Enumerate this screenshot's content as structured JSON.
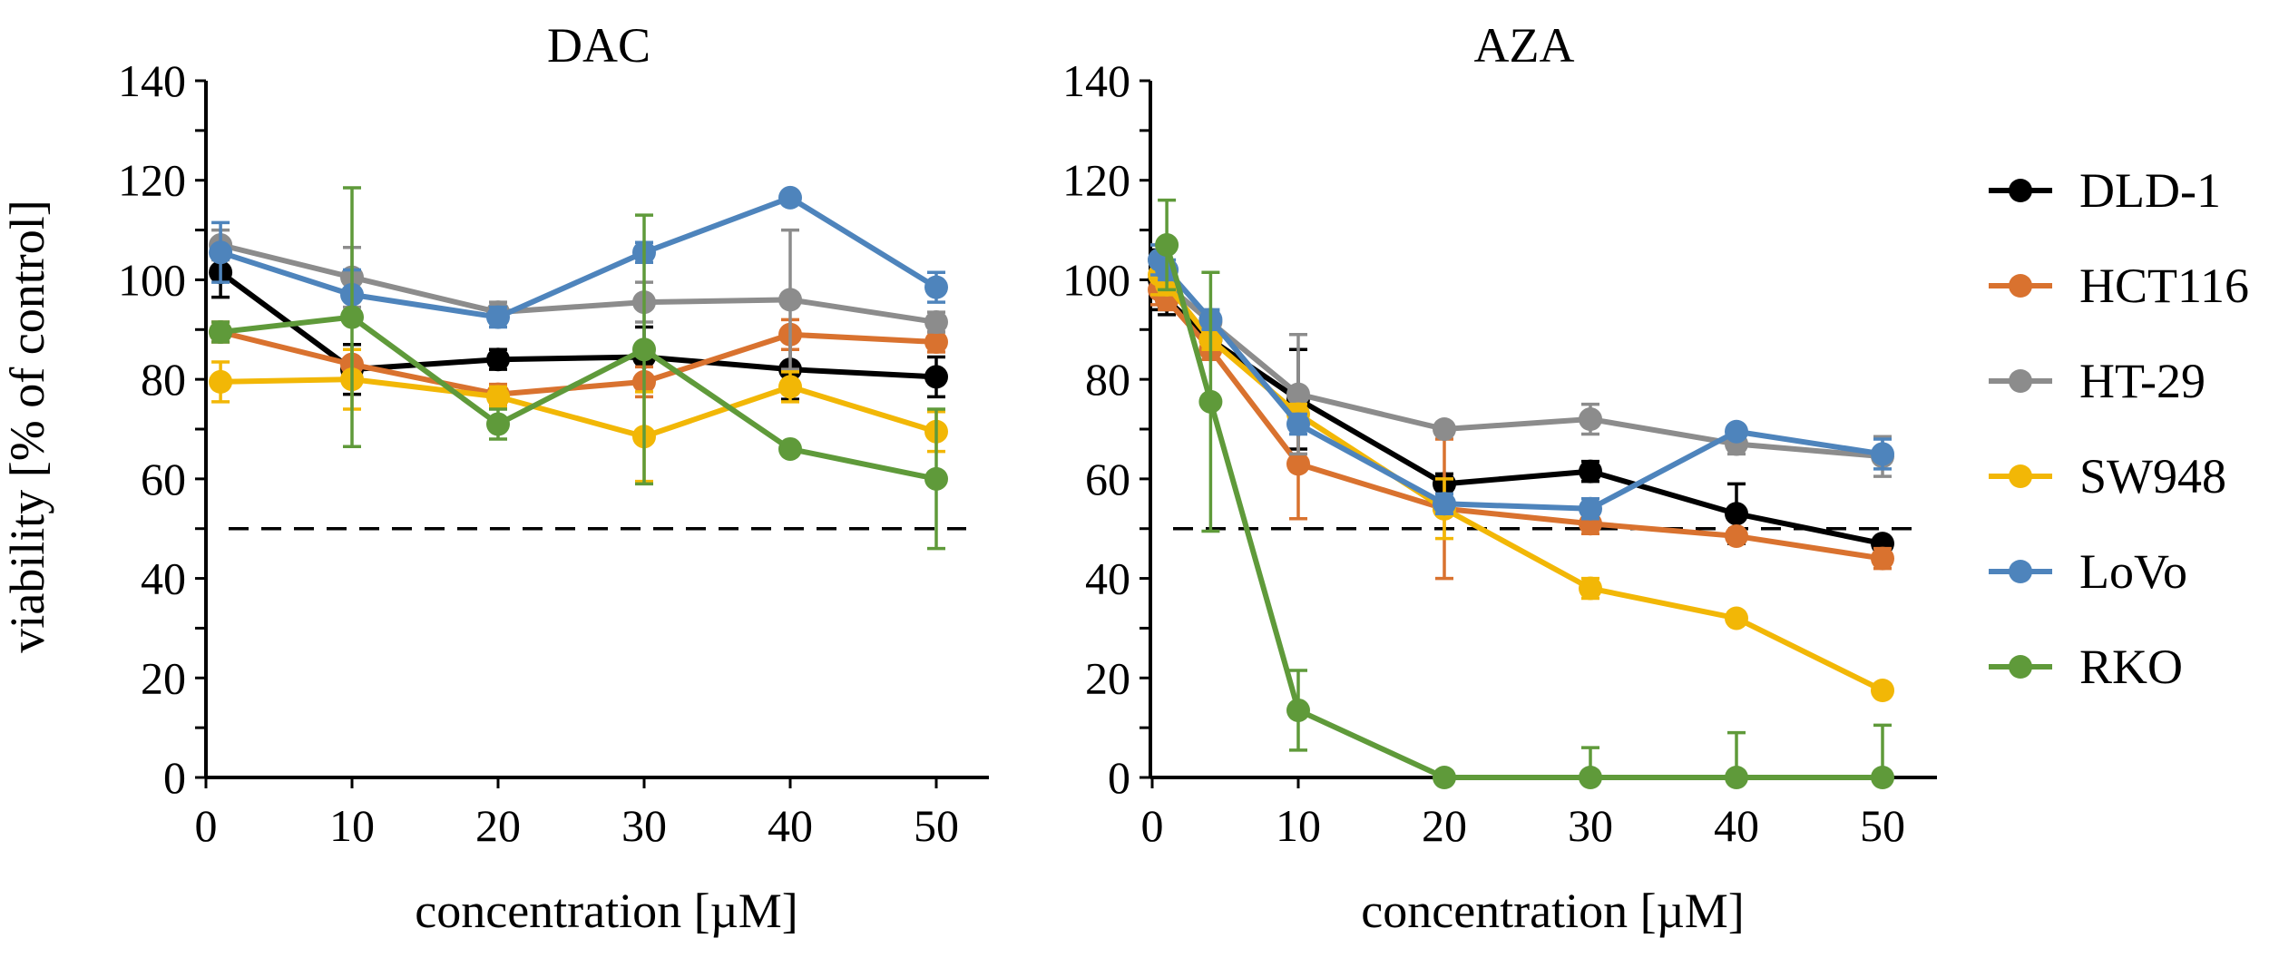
{
  "chart_data": {
    "type": "line",
    "shared": {
      "ylabel": "viability [% of control]",
      "xlabel": "concentration [µM]",
      "ylim": [
        0,
        140
      ],
      "yticks": [
        0,
        20,
        40,
        60,
        80,
        100,
        120,
        140
      ],
      "xlim": [
        0,
        53.5
      ],
      "xticks": [
        0,
        10,
        20,
        30,
        40,
        50
      ],
      "reference_line": 50,
      "legend_position": "right"
    },
    "legend": [
      {
        "name": "DLD-1",
        "color": "#000000"
      },
      {
        "name": "HCT116",
        "color": "#D9722F"
      },
      {
        "name": "HT-29",
        "color": "#8C8C8C"
      },
      {
        "name": "SW948",
        "color": "#F2B706"
      },
      {
        "name": "LoVo",
        "color": "#4E84BC"
      },
      {
        "name": "RKO",
        "color": "#5F9A3A"
      }
    ],
    "panels": [
      {
        "title": "DAC",
        "series": [
          {
            "name": "DLD-1",
            "color": "#000000",
            "x": [
              1,
              10,
              20,
              30,
              40,
              50
            ],
            "y": [
              101.5,
              82,
              84,
              84.5,
              82,
              80.5
            ],
            "err": [
              5,
              5,
              2,
              6,
              6,
              4
            ]
          },
          {
            "name": "HCT116",
            "color": "#D9722F",
            "x": [
              1,
              10,
              20,
              30,
              40,
              50
            ],
            "y": [
              89.5,
              83,
              77,
              79.5,
              89,
              87.5
            ],
            "err": [
              2,
              3,
              2,
              3,
              3,
              2
            ]
          },
          {
            "name": "HT-29",
            "color": "#8C8C8C",
            "x": [
              1,
              10,
              20,
              30,
              40,
              50
            ],
            "y": [
              107,
              100.5,
              93.5,
              95.5,
              96,
              91.5
            ],
            "err": [
              3,
              6,
              2,
              4,
              14,
              2
            ]
          },
          {
            "name": "SW948",
            "color": "#F2B706",
            "x": [
              1,
              10,
              20,
              30,
              40,
              50
            ],
            "y": [
              79.5,
              80,
              76.5,
              68.5,
              78.5,
              69.5
            ],
            "err": [
              4,
              6,
              2,
              9,
              3,
              4
            ]
          },
          {
            "name": "LoVo",
            "color": "#4E84BC",
            "x": [
              1,
              10,
              20,
              30,
              40,
              50
            ],
            "y": [
              105.5,
              97,
              92.5,
              105.5,
              116.5,
              98.5
            ],
            "err": [
              6,
              5,
              2,
              2,
              1,
              3
            ]
          },
          {
            "name": "RKO",
            "color": "#5F9A3A",
            "x": [
              1,
              10,
              20,
              30,
              40,
              50
            ],
            "y": [
              89.5,
              92.5,
              71,
              86,
              66,
              60
            ],
            "err": [
              2,
              26,
              3,
              27,
              1,
              14
            ]
          }
        ]
      },
      {
        "title": "AZA",
        "series": [
          {
            "name": "DLD-1",
            "color": "#000000",
            "x": [
              0.5,
              1,
              4,
              10,
              20,
              30,
              40,
              50
            ],
            "y": [
              100,
              96,
              88,
              76,
              59,
              61.5,
              53,
              47
            ],
            "err": [
              6,
              3,
              2,
              10,
              2,
              2,
              6,
              1
            ]
          },
          {
            "name": "HCT116",
            "color": "#D9722F",
            "x": [
              0.5,
              1,
              4,
              10,
              20,
              30,
              40,
              50
            ],
            "y": [
              98,
              96,
              86,
              63,
              54,
              51,
              48.5,
              44
            ],
            "err": [
              3,
              2,
              2,
              11,
              14,
              2,
              1,
              2
            ]
          },
          {
            "name": "HT-29",
            "color": "#8C8C8C",
            "x": [
              0.5,
              1,
              4,
              10,
              20,
              30,
              40,
              50
            ],
            "y": [
              104,
              99,
              91.5,
              77,
              70,
              72,
              67,
              64.5
            ],
            "err": [
              3,
              2,
              2,
              12,
              1,
              3,
              2,
              4
            ]
          },
          {
            "name": "SW948",
            "color": "#F2B706",
            "x": [
              0.5,
              1,
              4,
              10,
              20,
              30,
              40,
              50
            ],
            "y": [
              101,
              99,
              88,
              73,
              54,
              38,
              32,
              17.5
            ],
            "err": [
              4,
              2,
              2,
              2,
              6,
              2,
              1,
              1
            ]
          },
          {
            "name": "LoVo",
            "color": "#4E84BC",
            "x": [
              0.5,
              1,
              4,
              10,
              20,
              30,
              40,
              50
            ],
            "y": [
              104,
              102,
              92,
              71,
              55,
              54,
              69.5,
              65
            ],
            "err": [
              3,
              2,
              2,
              2,
              2,
              2,
              1,
              3
            ]
          },
          {
            "name": "RKO",
            "color": "#5F9A3A",
            "x": [
              1,
              4,
              10,
              20,
              30,
              40,
              50
            ],
            "y": [
              107,
              75.5,
              13.5,
              0,
              0,
              0,
              0
            ],
            "err": [
              9,
              26,
              8,
              0,
              6,
              9,
              10.5
            ]
          }
        ]
      }
    ]
  }
}
